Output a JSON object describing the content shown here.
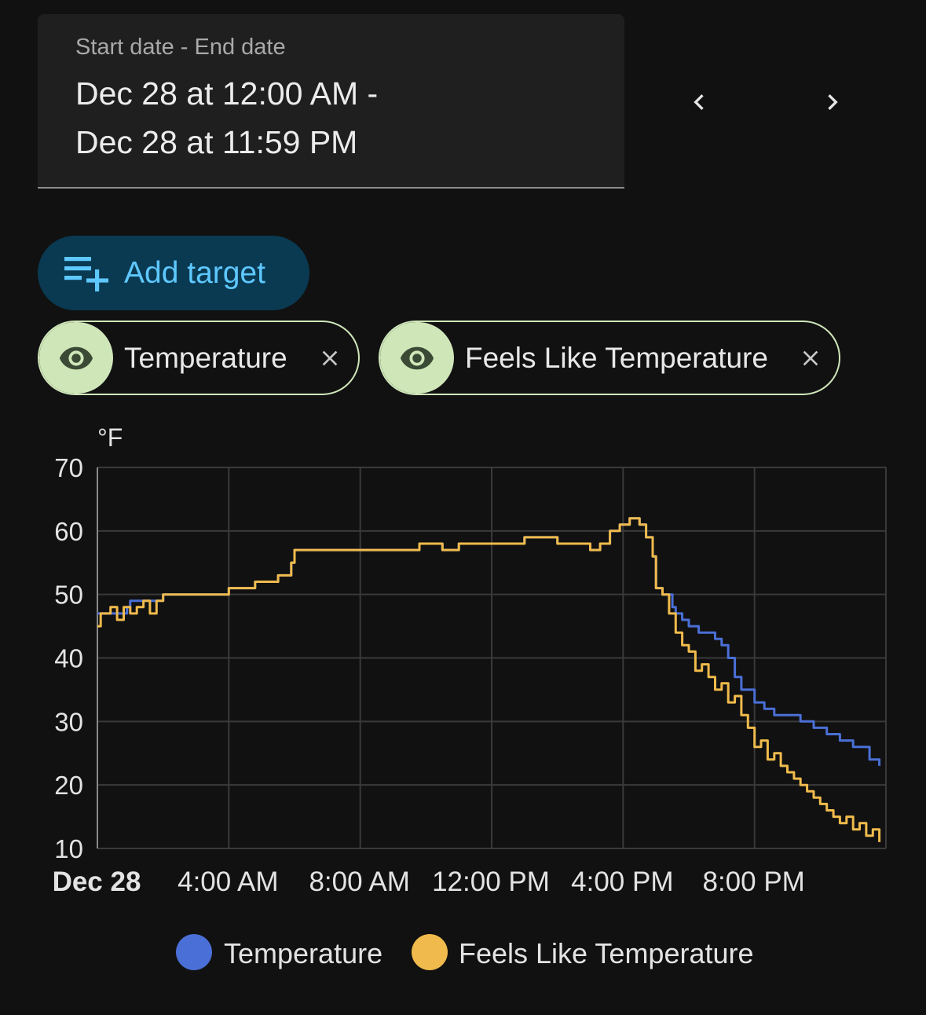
{
  "date_range": {
    "label": "Start date - End date",
    "start": "Dec 28 at 12:00 AM -",
    "end": "Dec 28 at 11:59 PM"
  },
  "nav": {
    "prev_icon": "chevron-left-icon",
    "next_icon": "chevron-right-icon"
  },
  "add_target": {
    "label": "Add target",
    "icon": "playlist-plus-icon"
  },
  "targets": [
    {
      "label": "Temperature",
      "icon": "eye-icon",
      "close_icon": "close-icon"
    },
    {
      "label": "Feels Like Temperature",
      "icon": "eye-icon",
      "close_icon": "close-icon"
    }
  ],
  "colors": {
    "temperature": "#4a6fd6",
    "feels_like": "#f0bb4c",
    "accent": "#5ec8ff",
    "chip": "#cfe6b9"
  },
  "chart_data": {
    "type": "line",
    "ylabel": "°F",
    "ylim": [
      10,
      70
    ],
    "yticks": [
      10,
      20,
      30,
      40,
      50,
      60,
      70
    ],
    "xlim": [
      0,
      24
    ],
    "xticks": [
      {
        "x": 0,
        "label": "Dec 28",
        "bold": true
      },
      {
        "x": 4,
        "label": "4:00 AM"
      },
      {
        "x": 8,
        "label": "8:00 AM"
      },
      {
        "x": 12,
        "label": "12:00 PM"
      },
      {
        "x": 16,
        "label": "4:00 PM"
      },
      {
        "x": 20,
        "label": "8:00 PM"
      }
    ],
    "grid": true,
    "legend": "bottom",
    "series": [
      {
        "name": "Temperature",
        "x": [
          0,
          0.5,
          0.9,
          1.0,
          1.5,
          2.0,
          2.8,
          4.0,
          4.8,
          5.5,
          5.9,
          6.0,
          6.1,
          7.0,
          8.0,
          9.5,
          9.8,
          10.5,
          11.0,
          11.6,
          12.2,
          12.5,
          13.0,
          13.5,
          14.0,
          14.5,
          15.0,
          15.3,
          15.6,
          15.9,
          16.2,
          16.5,
          16.7,
          16.9,
          17.0,
          17.2,
          17.5,
          17.6,
          17.8,
          18.0,
          18.3,
          18.8,
          19.0,
          19.2,
          19.4,
          19.6,
          20.0,
          20.3,
          20.6,
          21.0,
          21.4,
          21.8,
          22.2,
          22.6,
          23.0,
          23.5,
          23.8
        ],
        "values": [
          47,
          47,
          48,
          49,
          49,
          50,
          50,
          51,
          52,
          53,
          55,
          57,
          57,
          57,
          57,
          57,
          58,
          57,
          58,
          58,
          58,
          58,
          59,
          59,
          58,
          58,
          57,
          58,
          60,
          61,
          62,
          61,
          59,
          56,
          51,
          50,
          48,
          47,
          46,
          45,
          44,
          43,
          42,
          40,
          37,
          35,
          33,
          32,
          31,
          31,
          30,
          29,
          28,
          27,
          26,
          24,
          23
        ]
      },
      {
        "name": "Feels Like Temperature",
        "x": [
          0,
          0.1,
          0.2,
          0.4,
          0.6,
          0.8,
          1.0,
          1.2,
          1.4,
          1.6,
          1.8,
          2.0,
          2.8,
          4.0,
          4.8,
          5.5,
          5.9,
          6.0,
          6.1,
          7.0,
          8.0,
          9.5,
          9.8,
          10.5,
          11.0,
          11.6,
          12.2,
          12.5,
          13.0,
          13.5,
          14.0,
          14.5,
          15.0,
          15.3,
          15.6,
          15.9,
          16.2,
          16.5,
          16.7,
          16.9,
          17.0,
          17.2,
          17.4,
          17.6,
          17.8,
          18.0,
          18.2,
          18.4,
          18.6,
          18.8,
          19.0,
          19.2,
          19.4,
          19.6,
          19.8,
          20.0,
          20.2,
          20.4,
          20.6,
          20.8,
          21.0,
          21.2,
          21.4,
          21.6,
          21.8,
          22.0,
          22.2,
          22.4,
          22.6,
          22.8,
          23.0,
          23.2,
          23.4,
          23.6,
          23.8
        ],
        "values": [
          45,
          47,
          47,
          48,
          46,
          48,
          47,
          48,
          49,
          47,
          49,
          50,
          50,
          51,
          52,
          53,
          55,
          57,
          57,
          57,
          57,
          57,
          58,
          57,
          58,
          58,
          58,
          58,
          59,
          59,
          58,
          58,
          57,
          58,
          60,
          61,
          62,
          61,
          59,
          56,
          51,
          50,
          47,
          44,
          42,
          41,
          38,
          39,
          37,
          35,
          36,
          33,
          34,
          31,
          29,
          26,
          27,
          24,
          25,
          23,
          22,
          21,
          20,
          19,
          18,
          17,
          16,
          15,
          14,
          15,
          13,
          14,
          12,
          13,
          11
        ]
      }
    ]
  }
}
